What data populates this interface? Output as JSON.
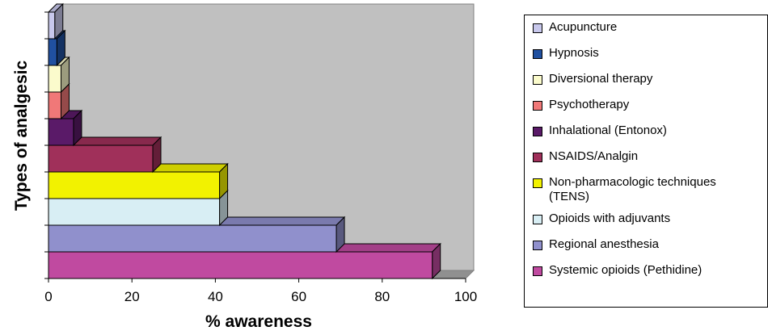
{
  "chart_data": {
    "type": "bar",
    "orientation": "horizontal",
    "three_d": true,
    "title": "",
    "xlabel": "% awareness",
    "ylabel": "Types of analgesic",
    "xlim": [
      0,
      100
    ],
    "xticks": [
      "0",
      "20",
      "40",
      "60",
      "80",
      "100"
    ],
    "grid": false,
    "legend_position": "right",
    "categories": [
      "Systemic opioids (Pethidine)",
      "Regional anesthesia",
      "Opioids with adjuvants",
      "Non-pharmacologic techniques\n(TENS)",
      "NSAIDS/Analgin",
      "Inhalational (Entonox)",
      "Psychotherapy",
      "Diversional therapy",
      "Hypnosis",
      "Acupuncture"
    ],
    "values": [
      92,
      69,
      41,
      41,
      25,
      6,
      3,
      3,
      2,
      1.5
    ],
    "colors": [
      "#c04aa0",
      "#9090cc",
      "#d8eef4",
      "#f2f200",
      "#a0305a",
      "#5a1a68",
      "#f07878",
      "#fbfbcc",
      "#2050a0",
      "#c8c8ec"
    ]
  }
}
